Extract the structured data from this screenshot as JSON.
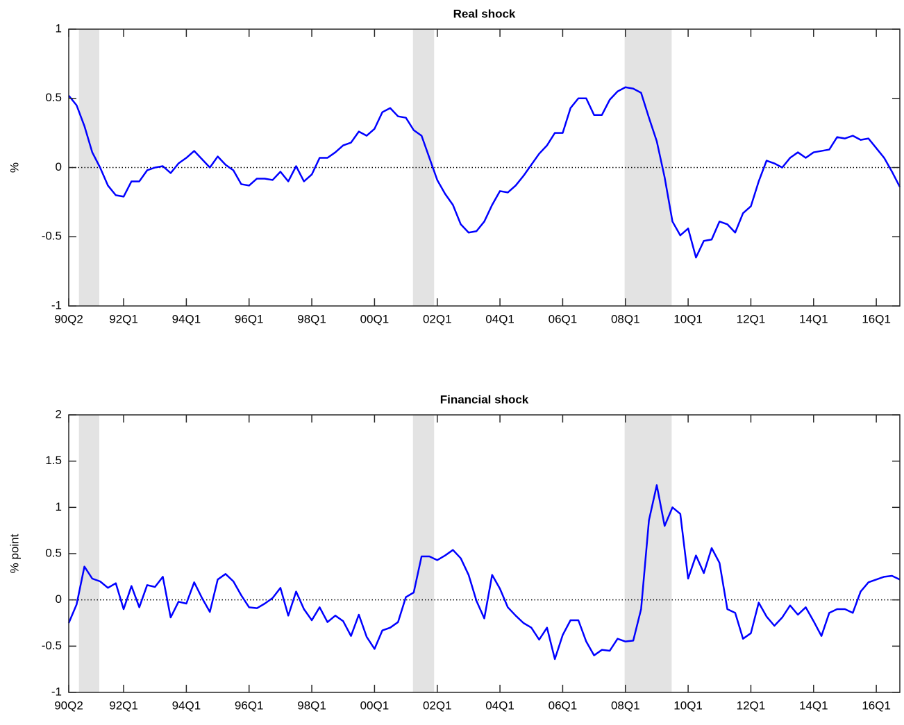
{
  "chart_data": [
    {
      "type": "line",
      "title": "Real shock",
      "ylabel": "%",
      "categories": [
        "90Q2",
        null,
        null,
        null,
        null,
        null,
        null,
        "92Q1",
        null,
        null,
        null,
        null,
        null,
        null,
        null,
        "94Q1",
        null,
        null,
        null,
        null,
        null,
        null,
        null,
        "96Q1",
        null,
        null,
        null,
        null,
        null,
        null,
        null,
        "98Q1",
        null,
        null,
        null,
        null,
        null,
        null,
        null,
        "00Q1",
        null,
        null,
        null,
        null,
        null,
        null,
        null,
        "02Q1",
        null,
        null,
        null,
        null,
        null,
        null,
        null,
        "04Q1",
        null,
        null,
        null,
        null,
        null,
        null,
        null,
        "06Q1",
        null,
        null,
        null,
        null,
        null,
        null,
        null,
        "08Q1",
        null,
        null,
        null,
        null,
        null,
        null,
        null,
        "10Q1",
        null,
        null,
        null,
        null,
        null,
        null,
        null,
        "12Q1",
        null,
        null,
        null,
        null,
        null,
        null,
        null,
        "14Q1",
        null,
        null,
        null,
        null,
        null,
        null,
        null,
        "16Q1",
        null,
        null,
        null
      ],
      "values": [
        0.52,
        0.45,
        0.3,
        0.11,
        0.0,
        -0.13,
        -0.2,
        -0.21,
        -0.1,
        -0.1,
        -0.02,
        0.0,
        0.01,
        -0.04,
        0.03,
        0.07,
        0.12,
        0.06,
        0.0,
        0.08,
        0.02,
        -0.02,
        -0.12,
        -0.13,
        -0.08,
        -0.08,
        -0.09,
        -0.03,
        -0.1,
        0.01,
        -0.1,
        -0.05,
        0.07,
        0.07,
        0.11,
        0.16,
        0.18,
        0.26,
        0.23,
        0.28,
        0.4,
        0.43,
        0.37,
        0.36,
        0.27,
        0.23,
        0.07,
        -0.09,
        -0.19,
        -0.27,
        -0.41,
        -0.47,
        -0.46,
        -0.39,
        -0.27,
        -0.17,
        -0.18,
        -0.13,
        -0.06,
        0.02,
        0.1,
        0.16,
        0.25,
        0.25,
        0.43,
        0.5,
        0.5,
        0.38,
        0.38,
        0.49,
        0.55,
        0.58,
        0.57,
        0.54,
        0.36,
        0.19,
        -0.07,
        -0.39,
        -0.49,
        -0.44,
        -0.65,
        -0.53,
        -0.52,
        -0.39,
        -0.41,
        -0.47,
        -0.33,
        -0.28,
        -0.1,
        0.05,
        0.03,
        0.0,
        0.07,
        0.11,
        0.07,
        0.11,
        0.12,
        0.13,
        0.22,
        0.21,
        0.23,
        0.2,
        0.21,
        0.14,
        0.07,
        -0.03,
        -0.14
      ],
      "color": "#0000ff",
      "ylim": [
        -1,
        1
      ],
      "yticks": [
        -1,
        -0.5,
        0,
        0.5,
        1
      ],
      "hline": 0,
      "shaded_ranges": [
        [
          1.3,
          3.9
        ],
        [
          43.9,
          46.6
        ],
        [
          70.9,
          76.9
        ]
      ]
    },
    {
      "type": "line",
      "title": "Financial shock",
      "ylabel": "% point",
      "categories": [
        "90Q2",
        null,
        null,
        null,
        null,
        null,
        null,
        "92Q1",
        null,
        null,
        null,
        null,
        null,
        null,
        null,
        "94Q1",
        null,
        null,
        null,
        null,
        null,
        null,
        null,
        "96Q1",
        null,
        null,
        null,
        null,
        null,
        null,
        null,
        "98Q1",
        null,
        null,
        null,
        null,
        null,
        null,
        null,
        "00Q1",
        null,
        null,
        null,
        null,
        null,
        null,
        null,
        "02Q1",
        null,
        null,
        null,
        null,
        null,
        null,
        null,
        "04Q1",
        null,
        null,
        null,
        null,
        null,
        null,
        null,
        "06Q1",
        null,
        null,
        null,
        null,
        null,
        null,
        null,
        "08Q1",
        null,
        null,
        null,
        null,
        null,
        null,
        null,
        "10Q1",
        null,
        null,
        null,
        null,
        null,
        null,
        null,
        "12Q1",
        null,
        null,
        null,
        null,
        null,
        null,
        null,
        "14Q1",
        null,
        null,
        null,
        null,
        null,
        null,
        null,
        "16Q1",
        null,
        null,
        null
      ],
      "values": [
        -0.25,
        -0.05,
        0.36,
        0.23,
        0.2,
        0.13,
        0.18,
        -0.1,
        0.15,
        -0.08,
        0.16,
        0.14,
        0.25,
        -0.19,
        -0.02,
        -0.04,
        0.19,
        0.02,
        -0.13,
        0.22,
        0.28,
        0.2,
        0.05,
        -0.08,
        -0.09,
        -0.04,
        0.02,
        0.13,
        -0.17,
        0.09,
        -0.1,
        -0.22,
        -0.08,
        -0.24,
        -0.17,
        -0.23,
        -0.39,
        -0.16,
        -0.4,
        -0.53,
        -0.33,
        -0.3,
        -0.24,
        0.03,
        0.08,
        0.47,
        0.47,
        0.43,
        0.48,
        0.54,
        0.45,
        0.27,
        -0.01,
        -0.2,
        0.27,
        0.12,
        -0.08,
        -0.17,
        -0.25,
        -0.3,
        -0.43,
        -0.3,
        -0.64,
        -0.38,
        -0.22,
        -0.22,
        -0.45,
        -0.6,
        -0.54,
        -0.55,
        -0.42,
        -0.45,
        -0.44,
        -0.1,
        0.86,
        1.24,
        0.8,
        1.0,
        0.93,
        0.23,
        0.48,
        0.29,
        0.56,
        0.4,
        -0.1,
        -0.14,
        -0.42,
        -0.36,
        -0.03,
        -0.18,
        -0.28,
        -0.19,
        -0.06,
        -0.16,
        -0.08,
        -0.23,
        -0.39,
        -0.14,
        -0.1,
        -0.1,
        -0.14,
        0.09,
        0.19,
        0.22,
        0.25,
        0.26,
        0.22
      ],
      "color": "#0000ff",
      "ylim": [
        -1,
        2
      ],
      "yticks": [
        -1,
        -0.5,
        0,
        0.5,
        1,
        1.5,
        2
      ],
      "hline": 0,
      "shaded_ranges": [
        [
          1.3,
          3.9
        ],
        [
          43.9,
          46.6
        ],
        [
          70.9,
          76.9
        ]
      ]
    }
  ]
}
